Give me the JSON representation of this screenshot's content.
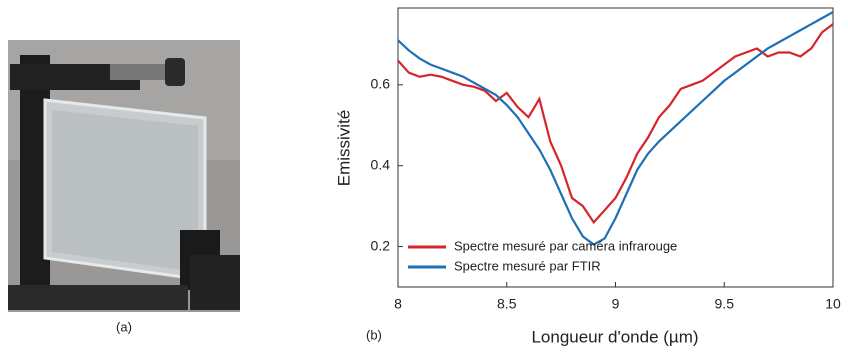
{
  "photo": {
    "label": "(a)"
  },
  "chart_data": {
    "type": "line",
    "panel_label": "(b)",
    "x_label": "Longueur d'onde (µm)",
    "y_label": "Emissivité",
    "x": [
      8,
      8.05,
      8.1,
      8.15,
      8.2,
      8.25,
      8.3,
      8.35,
      8.4,
      8.45,
      8.5,
      8.55,
      8.6,
      8.65,
      8.7,
      8.75,
      8.8,
      8.85,
      8.9,
      8.95,
      9,
      9.05,
      9.1,
      9.15,
      9.2,
      9.25,
      9.3,
      9.35,
      9.4,
      9.45,
      9.5,
      9.55,
      9.6,
      9.65,
      9.7,
      9.75,
      9.8,
      9.85,
      9.9,
      9.95,
      10
    ],
    "series": [
      {
        "name": "Spectre mesuré par caméra infrarouge",
        "color": "#d8232a",
        "values": [
          0.66,
          0.63,
          0.62,
          0.625,
          0.62,
          0.61,
          0.6,
          0.595,
          0.585,
          0.56,
          0.58,
          0.545,
          0.52,
          0.565,
          0.46,
          0.4,
          0.32,
          0.3,
          0.26,
          0.29,
          0.32,
          0.37,
          0.43,
          0.47,
          0.52,
          0.55,
          0.59,
          0.6,
          0.61,
          0.63,
          0.65,
          0.67,
          0.68,
          0.69,
          0.67,
          0.68,
          0.68,
          0.67,
          0.69,
          0.73,
          0.75
        ]
      },
      {
        "name": "Spectre mesuré par FTIR",
        "color": "#1f6fb6",
        "values": [
          0.71,
          0.685,
          0.665,
          0.65,
          0.64,
          0.63,
          0.62,
          0.605,
          0.59,
          0.575,
          0.55,
          0.52,
          0.48,
          0.44,
          0.39,
          0.33,
          0.27,
          0.225,
          0.205,
          0.22,
          0.27,
          0.33,
          0.39,
          0.43,
          0.46,
          0.485,
          0.51,
          0.535,
          0.56,
          0.585,
          0.61,
          0.63,
          0.65,
          0.67,
          0.69,
          0.705,
          0.72,
          0.735,
          0.75,
          0.765,
          0.78
        ]
      }
    ],
    "xlim": [
      8,
      10
    ],
    "ylim": [
      0.1,
      0.79
    ],
    "xticks": [
      8,
      8.5,
      9,
      9.5,
      10
    ],
    "yticks": [
      0.2,
      0.4,
      0.6
    ],
    "legend": "lower left"
  }
}
